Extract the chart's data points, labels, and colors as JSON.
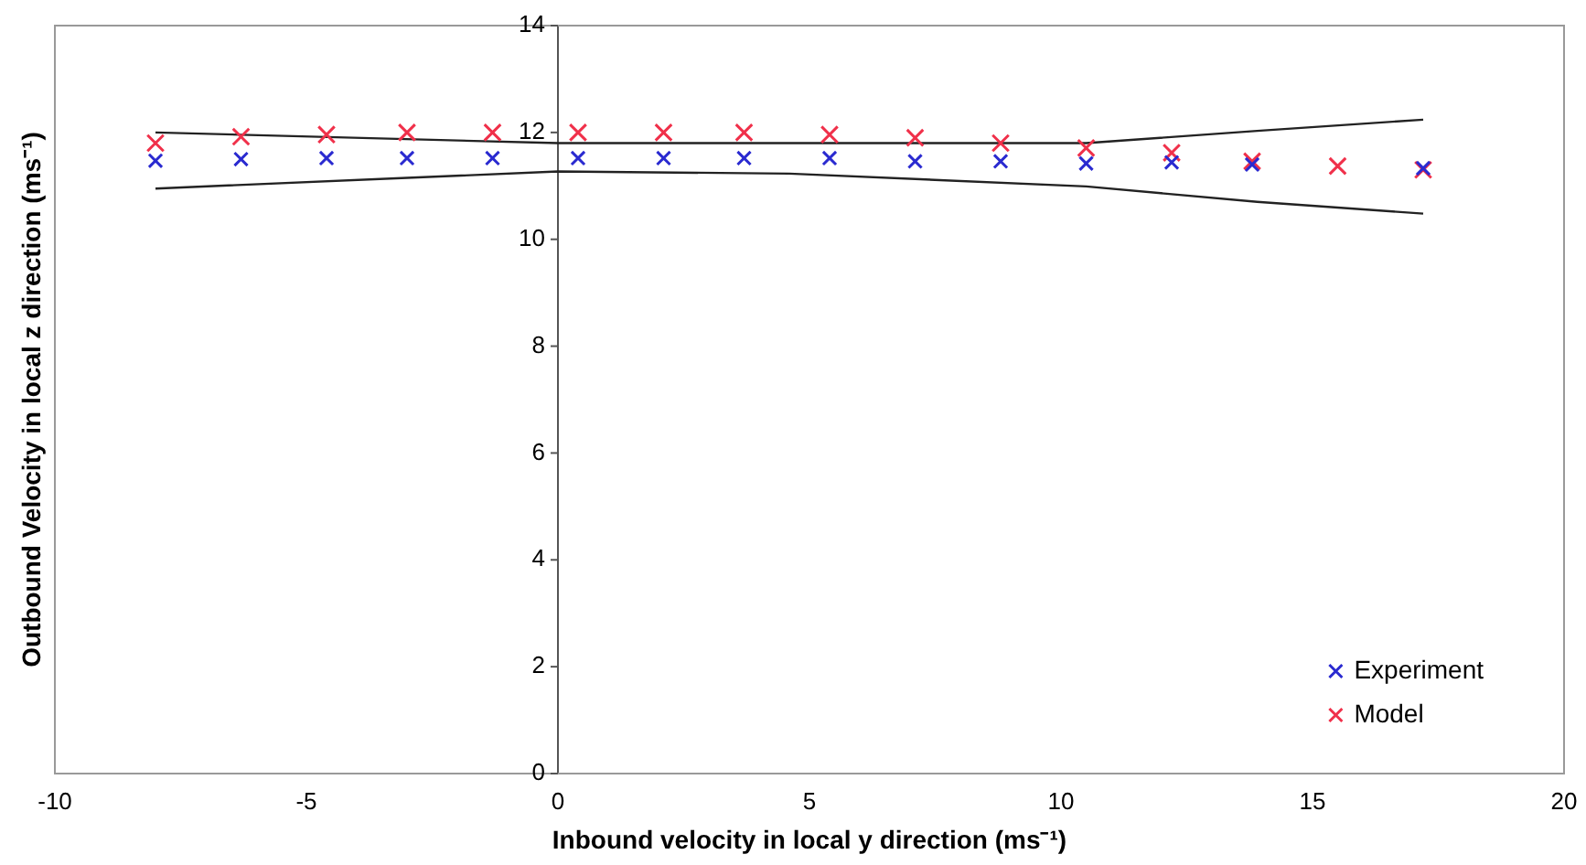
{
  "chart_data": {
    "type": "scatter",
    "xlabel": "Inbound velocity in local y direction (ms⁻¹)",
    "ylabel": "Outbound Velocity in local z direction (ms⁻¹)",
    "x": [
      -8,
      -6.3,
      -4.6,
      -3.0,
      -1.3,
      0.4,
      2.1,
      3.7,
      5.4,
      7.1,
      8.8,
      10.5,
      12.2,
      13.8,
      15.5,
      17.2
    ],
    "series": [
      {
        "name": "Experiment",
        "color": "#2a2ad0",
        "marker": "cross",
        "values": [
          11.47,
          11.5,
          11.52,
          11.52,
          11.52,
          11.52,
          11.52,
          11.52,
          11.52,
          11.46,
          11.46,
          11.42,
          11.44,
          11.4,
          null,
          11.33
        ]
      },
      {
        "name": "Model",
        "color": "#f0304a",
        "marker": "cross",
        "values": [
          11.8,
          11.92,
          11.96,
          12.0,
          12.0,
          12.0,
          12.0,
          12.0,
          11.96,
          11.9,
          11.8,
          11.71,
          11.62,
          11.46,
          11.37,
          11.3
        ]
      },
      {
        "type": "line",
        "color": "#222222",
        "marker": "none",
        "x": [
          -8,
          0,
          4.6,
          10.5,
          13.9,
          17.2
        ],
        "values": [
          12.0,
          11.8,
          11.8,
          11.8,
          12.03,
          12.24
        ]
      },
      {
        "type": "line",
        "color": "#222222",
        "marker": "none",
        "x": [
          -8,
          -3,
          0,
          4.6,
          10.5,
          13.9,
          17.2
        ],
        "values": [
          10.95,
          11.15,
          11.27,
          11.23,
          10.99,
          10.7,
          10.48
        ]
      }
    ],
    "xlim": [
      -10,
      20
    ],
    "xticks": [
      -10,
      -5,
      0,
      5,
      10,
      15,
      20
    ],
    "ylim": [
      0,
      14
    ],
    "yticks": [
      0,
      2,
      4,
      6,
      8,
      10,
      12,
      14
    ],
    "grid": false,
    "legend": "bottom right"
  }
}
